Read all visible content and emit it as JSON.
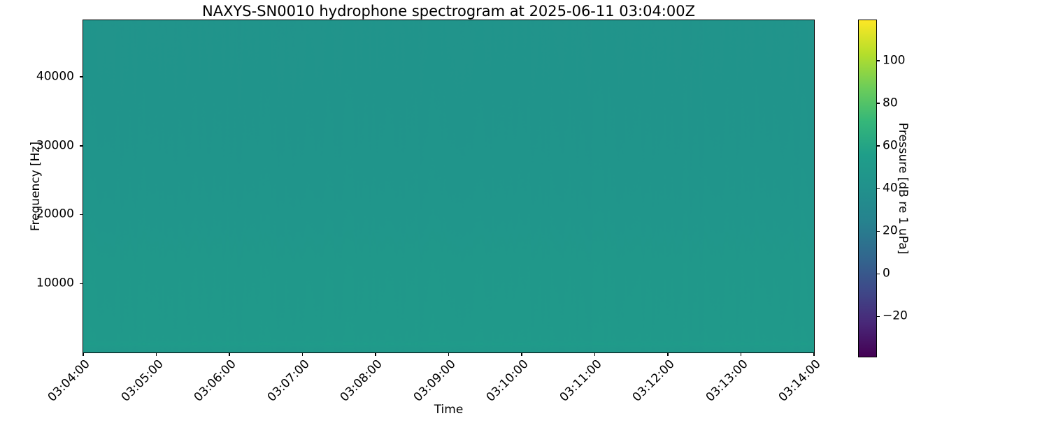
{
  "figure": {
    "background_color": "#ffffff",
    "text_color": "#000000"
  },
  "chart_data": {
    "type": "spectrogram",
    "title": "NAXYS-SN0010 hydrophone spectrogram at 2025-06-11 03:04:00Z",
    "xlabel": "Time",
    "ylabel": "Frequency [Hz]",
    "x_tick_labels": [
      "03:04:00",
      "03:05:00",
      "03:06:00",
      "03:07:00",
      "03:08:00",
      "03:09:00",
      "03:10:00",
      "03:11:00",
      "03:12:00",
      "03:13:00",
      "03:14:00"
    ],
    "y_ticks": [
      10000,
      20000,
      30000,
      40000
    ],
    "ylim": [
      0,
      48200
    ],
    "grid": false,
    "colorbar": {
      "label": "Pressure [dB re 1 uPa]",
      "ticks": [
        100,
        80,
        60,
        40,
        20,
        0,
        -20
      ],
      "vmin": -39,
      "vmax": 119,
      "colormap": "viridis"
    },
    "colormap_stops": [
      [
        0.0,
        "#440154"
      ],
      [
        0.1,
        "#482878"
      ],
      [
        0.2,
        "#3e4a89"
      ],
      [
        0.3,
        "#31688e"
      ],
      [
        0.4,
        "#26828e"
      ],
      [
        0.5,
        "#21918c"
      ],
      [
        0.6,
        "#1f9e89"
      ],
      [
        0.7,
        "#35b779"
      ],
      [
        0.8,
        "#6dcd59"
      ],
      [
        0.9,
        "#b5de2b"
      ],
      [
        1.0,
        "#fde725"
      ]
    ],
    "background_profile_hz_db": [
      [
        0,
        49.0
      ],
      [
        800,
        50.0
      ],
      [
        1250,
        53.0
      ],
      [
        1800,
        50.5
      ],
      [
        3500,
        50.0
      ],
      [
        8000,
        49.5
      ],
      [
        13000,
        48.8
      ],
      [
        18000,
        47.0
      ],
      [
        24000,
        45.5
      ],
      [
        32000,
        44.5
      ],
      [
        42000,
        43.8
      ],
      [
        48200,
        43.5
      ]
    ],
    "noise": {
      "column_db": 1.0,
      "pixel_db": 0.35,
      "seed": 12
    }
  }
}
